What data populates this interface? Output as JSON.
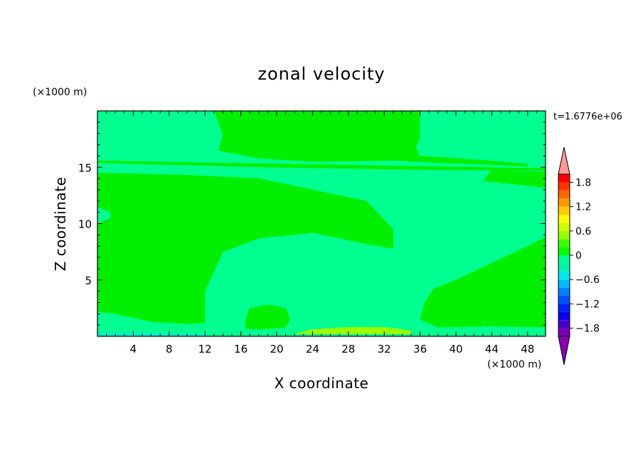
{
  "chart_data": {
    "type": "heatmap",
    "title": "zonal velocity",
    "xlabel": "X coordinate",
    "ylabel": "Z coordinate",
    "x_unit": "(×1000 m)",
    "y_unit": "(×1000 m)",
    "time_label": "t=1.6776e+06",
    "xlim": [
      0,
      50
    ],
    "ylim": [
      0,
      20
    ],
    "x_ticks": [
      4,
      8,
      12,
      16,
      20,
      24,
      28,
      32,
      36,
      40,
      44,
      48
    ],
    "y_ticks": [
      5,
      10,
      15
    ],
    "colorbar": {
      "range": [
        -2,
        2
      ],
      "step": 0.2,
      "labels": [
        "1.8",
        "1.2",
        "0.6",
        "0",
        "−0.6",
        "−1.2",
        "−1.8"
      ],
      "label_values": [
        1.8,
        1.2,
        0.6,
        0,
        -0.6,
        -1.2,
        -1.8
      ],
      "colors": [
        "#7a00b4",
        "#4400c8",
        "#0c00e6",
        "#0020ff",
        "#0050ff",
        "#0080ff",
        "#00b8ff",
        "#00e8e8",
        "#00f0b0",
        "#00ff90",
        "#00ff00",
        "#40ff00",
        "#99ff00",
        "#ccff00",
        "#ffff00",
        "#ffcc00",
        "#ff9900",
        "#ff6600",
        "#ff3300",
        "#ff0000"
      ],
      "under_color": "#8800b0",
      "over_color": "#ff9999"
    },
    "regions": [
      {
        "value": 0.1,
        "color": "#00ff90",
        "polygon": [
          [
            0,
            0
          ],
          [
            50,
            0
          ],
          [
            50,
            20
          ],
          [
            0,
            20
          ]
        ]
      },
      {
        "value": 0.1,
        "color": "#00ee00",
        "polygon": [
          [
            0,
            2.2
          ],
          [
            2,
            2
          ],
          [
            6,
            1.3
          ],
          [
            10,
            1.1
          ],
          [
            12,
            1.2
          ],
          [
            12,
            4
          ],
          [
            14,
            7.5
          ],
          [
            18,
            8.7
          ],
          [
            24,
            9.2
          ],
          [
            30,
            8.2
          ],
          [
            33,
            7.8
          ],
          [
            33,
            9.5
          ],
          [
            30,
            12
          ],
          [
            24,
            13
          ],
          [
            18,
            14
          ],
          [
            10,
            14.3
          ],
          [
            0,
            14.5
          ],
          [
            0,
            11.5
          ],
          [
            1.5,
            11
          ],
          [
            1.5,
            10.5
          ],
          [
            0,
            10
          ]
        ]
      },
      {
        "value": 0.1,
        "color": "#00ee00",
        "polygon": [
          [
            36,
            1.5
          ],
          [
            38,
            0.8
          ],
          [
            44,
            0.9
          ],
          [
            50,
            0.8
          ],
          [
            50,
            8.8
          ],
          [
            48,
            8
          ],
          [
            44,
            6.5
          ],
          [
            40,
            5
          ],
          [
            37.5,
            4.2
          ],
          [
            36.5,
            3
          ]
        ]
      },
      {
        "value": 0.1,
        "color": "#00ee00",
        "polygon": [
          [
            16.5,
            0.7
          ],
          [
            18,
            0.6
          ],
          [
            21,
            0.8
          ],
          [
            21.5,
            1.5
          ],
          [
            21,
            2.5
          ],
          [
            19,
            2.8
          ],
          [
            17,
            2.5
          ],
          [
            16.5,
            1.5
          ]
        ]
      },
      {
        "value": 0.1,
        "color": "#00ee00",
        "polygon": [
          [
            43,
            13.8
          ],
          [
            50,
            13.2
          ],
          [
            50,
            14.6
          ],
          [
            44,
            14.7
          ]
        ]
      },
      {
        "value": 0.1,
        "color": "#00ee00",
        "polygon": [
          [
            0,
            15.4
          ],
          [
            5,
            15.3
          ],
          [
            20,
            15
          ],
          [
            35,
            14.8
          ],
          [
            50,
            14.7
          ],
          [
            50,
            14.9
          ],
          [
            35,
            15.1
          ],
          [
            20,
            15.3
          ],
          [
            5,
            15.5
          ],
          [
            0,
            15.6
          ]
        ]
      },
      {
        "value": 0.1,
        "color": "#00ee00",
        "polygon": [
          [
            13,
            20
          ],
          [
            13.5,
            19
          ],
          [
            14,
            17.8
          ],
          [
            13.5,
            16.5
          ],
          [
            18,
            15.8
          ],
          [
            24,
            15.5
          ],
          [
            33,
            15.6
          ],
          [
            38,
            15.4
          ],
          [
            42,
            15.3
          ],
          [
            48,
            15.1
          ],
          [
            48,
            15.3
          ],
          [
            40,
            15.8
          ],
          [
            36,
            16
          ],
          [
            35.5,
            16.8
          ],
          [
            36,
            17.5
          ],
          [
            36,
            20
          ]
        ]
      },
      {
        "value": 0.3,
        "color": "#99ff00",
        "polygon": [
          [
            22,
            0.2
          ],
          [
            24,
            0.6
          ],
          [
            28,
            0.8
          ],
          [
            32,
            0.8
          ],
          [
            35,
            0.5
          ],
          [
            35,
            0.2
          ]
        ]
      },
      {
        "value": -0.3,
        "color": "#00f0c8",
        "polygon": [
          [
            0,
            0
          ],
          [
            12,
            0
          ],
          [
            12,
            0.2
          ],
          [
            6,
            0.3
          ],
          [
            0,
            0.3
          ]
        ]
      }
    ]
  }
}
